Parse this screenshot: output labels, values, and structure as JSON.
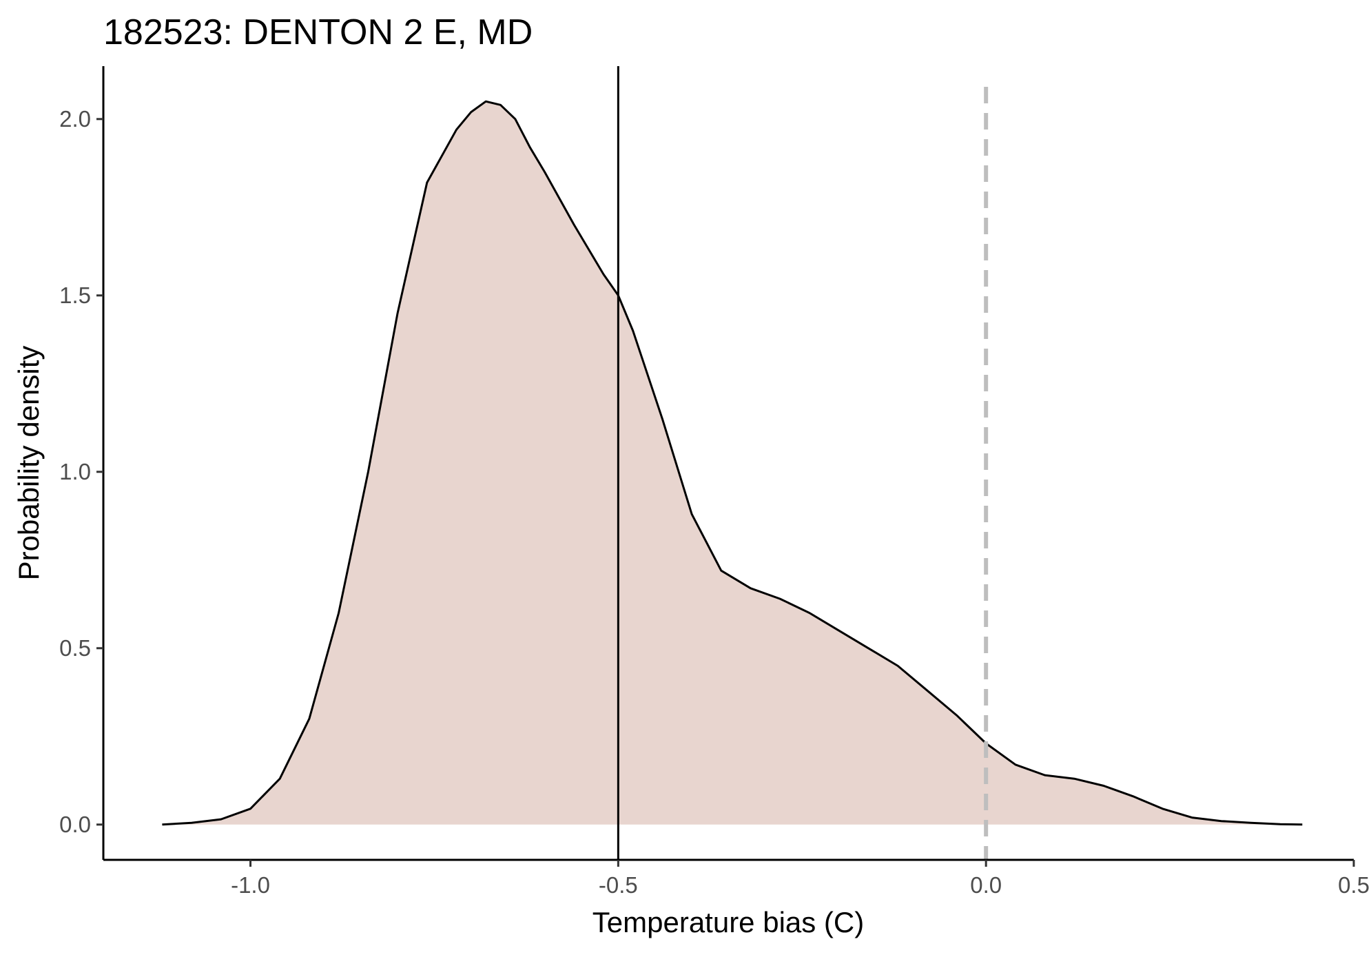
{
  "chart_data": {
    "type": "area",
    "title": "182523: DENTON 2 E, MD",
    "xlabel": "Temperature bias (C)",
    "ylabel": "Probability density",
    "xlim": [
      -1.2,
      0.5
    ],
    "ylim": [
      -0.1,
      2.15
    ],
    "x_ticks": [
      -1.0,
      -0.5,
      0.0,
      0.5
    ],
    "x_tick_labels": [
      "-1.0",
      "-0.5",
      "0.0",
      "0.5"
    ],
    "y_ticks": [
      0.0,
      0.5,
      1.0,
      1.5,
      2.0
    ],
    "y_tick_labels": [
      "0.0",
      "0.5",
      "1.0",
      "1.5",
      "2.0"
    ],
    "grid": false,
    "legend": "none",
    "fill_color": "#e8d5cf",
    "line_color": "#000000",
    "series": [
      {
        "x": [
          -1.12,
          -1.08,
          -1.04,
          -1.0,
          -0.96,
          -0.92,
          -0.88,
          -0.84,
          -0.8,
          -0.76,
          -0.72,
          -0.7,
          -0.68,
          -0.66,
          -0.64,
          -0.62,
          -0.6,
          -0.56,
          -0.52,
          -0.5,
          -0.48,
          -0.44,
          -0.4,
          -0.36,
          -0.32,
          -0.28,
          -0.24,
          -0.2,
          -0.16,
          -0.12,
          -0.08,
          -0.04,
          0.0,
          0.04,
          0.08,
          0.12,
          0.16,
          0.2,
          0.24,
          0.28,
          0.32,
          0.36,
          0.4,
          0.43
        ],
        "y": [
          0.0,
          0.005,
          0.015,
          0.045,
          0.13,
          0.3,
          0.6,
          1.0,
          1.45,
          1.82,
          1.97,
          2.02,
          2.05,
          2.04,
          2.0,
          1.92,
          1.85,
          1.7,
          1.56,
          1.5,
          1.4,
          1.15,
          0.88,
          0.72,
          0.67,
          0.64,
          0.6,
          0.55,
          0.5,
          0.45,
          0.38,
          0.31,
          0.23,
          0.17,
          0.14,
          0.13,
          0.11,
          0.08,
          0.045,
          0.02,
          0.01,
          0.005,
          0.001,
          0.0
        ]
      }
    ],
    "vlines": [
      {
        "x": -0.5,
        "style": "solid",
        "color": "#000000"
      },
      {
        "x": 0.0,
        "style": "dashed",
        "color": "#bebebe"
      }
    ]
  }
}
